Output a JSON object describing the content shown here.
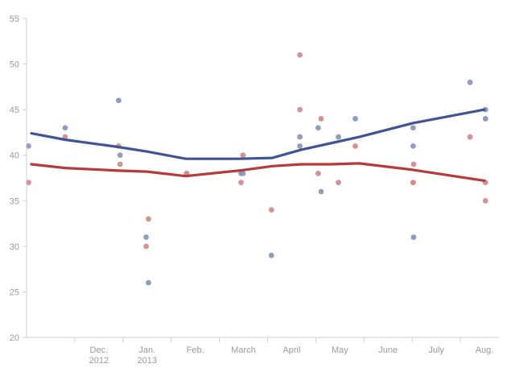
{
  "chart_data": {
    "type": "scatter",
    "title": "",
    "xlabel": "",
    "ylabel": "",
    "ylim": [
      20,
      55
    ],
    "y_ticks": [
      20,
      25,
      30,
      35,
      40,
      45,
      50,
      55
    ],
    "x_ticks": [
      {
        "x": 1.5,
        "lines": [
          "Dec.",
          "2012"
        ]
      },
      {
        "x": 2.5,
        "lines": [
          "Jan.",
          "2013"
        ]
      },
      {
        "x": 3.5,
        "lines": [
          "Feb."
        ]
      },
      {
        "x": 4.5,
        "lines": [
          "March"
        ]
      },
      {
        "x": 5.5,
        "lines": [
          "April"
        ]
      },
      {
        "x": 6.5,
        "lines": [
          "May"
        ]
      },
      {
        "x": 7.5,
        "lines": [
          "June"
        ]
      },
      {
        "x": 8.5,
        "lines": [
          "July"
        ]
      },
      {
        "x": 9.5,
        "lines": [
          "Aug."
        ]
      }
    ],
    "grid": false,
    "legend": "none",
    "series": [
      {
        "color": "#3f5593",
        "dot_color": "#8b97be",
        "points": [
          [
            0.04,
            41
          ],
          [
            0.8,
            43
          ],
          [
            1.91,
            46
          ],
          [
            1.94,
            40
          ],
          [
            2.48,
            31
          ],
          [
            2.53,
            26
          ],
          [
            3.32,
            38
          ],
          [
            4.45,
            38
          ],
          [
            4.49,
            38
          ],
          [
            5.08,
            29
          ],
          [
            5.67,
            42
          ],
          [
            5.67,
            41
          ],
          [
            6.05,
            43
          ],
          [
            6.11,
            36
          ],
          [
            6.47,
            42
          ],
          [
            6.82,
            44
          ],
          [
            8.02,
            43
          ],
          [
            8.02,
            41
          ],
          [
            8.03,
            31
          ],
          [
            9.2,
            48
          ],
          [
            9.52,
            45
          ],
          [
            9.52,
            44
          ]
        ],
        "trend": [
          [
            0.1,
            42.4
          ],
          [
            0.8,
            41.7
          ],
          [
            1.9,
            40.9
          ],
          [
            2.5,
            40.4
          ],
          [
            3.3,
            39.6
          ],
          [
            4.4,
            39.6
          ],
          [
            5.1,
            39.7
          ],
          [
            5.7,
            40.6
          ],
          [
            6.3,
            41.3
          ],
          [
            6.9,
            42.0
          ],
          [
            8.0,
            43.5
          ],
          [
            9.5,
            45.0
          ]
        ]
      },
      {
        "color": "#b53a3a",
        "dot_color": "#d48c8c",
        "points": [
          [
            0.04,
            37
          ],
          [
            0.8,
            42
          ],
          [
            1.91,
            41
          ],
          [
            1.94,
            39
          ],
          [
            2.48,
            30
          ],
          [
            2.53,
            33
          ],
          [
            3.32,
            38
          ],
          [
            4.45,
            37
          ],
          [
            4.49,
            40
          ],
          [
            5.08,
            34
          ],
          [
            5.67,
            51
          ],
          [
            5.67,
            45
          ],
          [
            6.05,
            38
          ],
          [
            6.11,
            44
          ],
          [
            6.47,
            37
          ],
          [
            6.82,
            41
          ],
          [
            8.02,
            37
          ],
          [
            8.02,
            37
          ],
          [
            8.03,
            39
          ],
          [
            9.2,
            42
          ],
          [
            9.52,
            37
          ],
          [
            9.52,
            35
          ]
        ],
        "trend": [
          [
            0.1,
            39.0
          ],
          [
            0.8,
            38.6
          ],
          [
            1.9,
            38.3
          ],
          [
            2.5,
            38.2
          ],
          [
            3.3,
            37.7
          ],
          [
            4.4,
            38.3
          ],
          [
            5.1,
            38.8
          ],
          [
            5.7,
            39.0
          ],
          [
            6.3,
            39.0
          ],
          [
            6.9,
            39.1
          ],
          [
            8.0,
            38.4
          ],
          [
            9.5,
            37.2
          ]
        ]
      }
    ]
  }
}
